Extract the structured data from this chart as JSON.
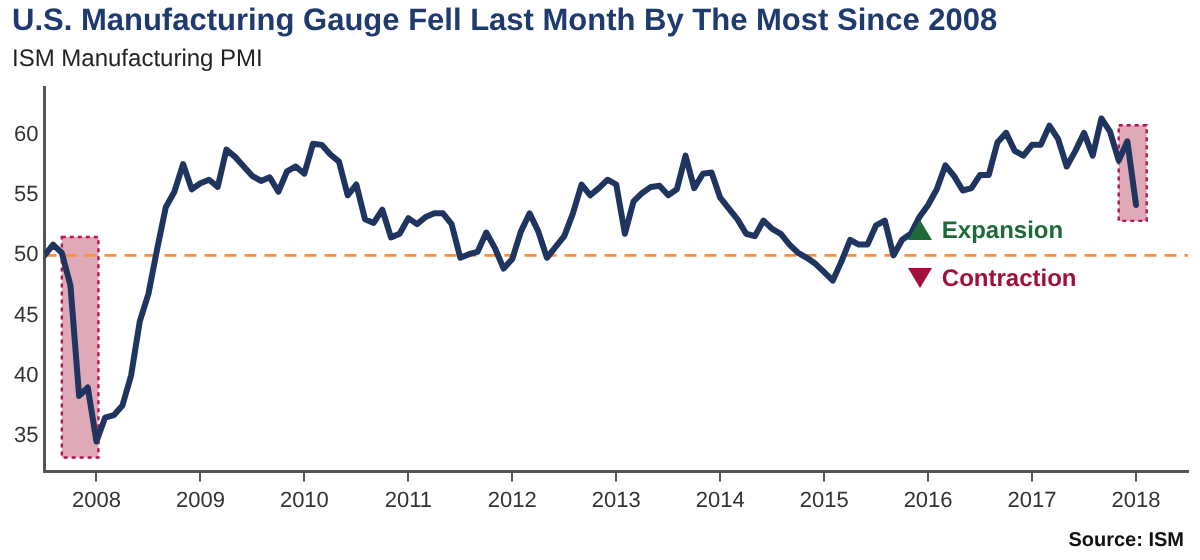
{
  "chart_data": {
    "type": "line",
    "title": "U.S. Manufacturing Gauge Fell Last Month By The Most Since 2008",
    "subtitle": "ISM Manufacturing PMI",
    "annotations": [
      "Expansion",
      "Contraction",
      "Source: ISM"
    ],
    "x": [
      "2007-07",
      "2007-08",
      "2007-09",
      "2007-10",
      "2007-11",
      "2007-12",
      "2008-01",
      "2008-02",
      "2008-03",
      "2008-04",
      "2008-05",
      "2008-06",
      "2008-07",
      "2008-08",
      "2008-09",
      "2008-10",
      "2008-11",
      "2008-12",
      "2009-01",
      "2009-02",
      "2009-03",
      "2009-04",
      "2009-05",
      "2009-06",
      "2009-07",
      "2009-08",
      "2009-09",
      "2009-10",
      "2009-11",
      "2009-12",
      "2010-01",
      "2010-02",
      "2010-03",
      "2010-04",
      "2010-05",
      "2010-06",
      "2010-07",
      "2010-08",
      "2010-09",
      "2010-10",
      "2010-11",
      "2010-12",
      "2011-01",
      "2011-02",
      "2011-03",
      "2011-04",
      "2011-05",
      "2011-06",
      "2011-07",
      "2011-08",
      "2011-09",
      "2011-10",
      "2011-11",
      "2011-12",
      "2012-01",
      "2012-02",
      "2012-03",
      "2012-04",
      "2012-05",
      "2012-06",
      "2012-07",
      "2012-08",
      "2012-09",
      "2012-10",
      "2012-11",
      "2012-12",
      "2013-01",
      "2013-02",
      "2013-03",
      "2013-04",
      "2013-05",
      "2013-06",
      "2013-07",
      "2013-08",
      "2013-09",
      "2013-10",
      "2013-11",
      "2013-12",
      "2014-01",
      "2014-02",
      "2014-03",
      "2014-04",
      "2014-05",
      "2014-06",
      "2014-07",
      "2014-08",
      "2014-09",
      "2014-10",
      "2014-11",
      "2014-12",
      "2015-01",
      "2015-02",
      "2015-03",
      "2015-04",
      "2015-05",
      "2015-06",
      "2015-07",
      "2015-08",
      "2015-09",
      "2015-10",
      "2015-11",
      "2015-12",
      "2016-01",
      "2016-02",
      "2016-03",
      "2016-04",
      "2016-05",
      "2016-06",
      "2016-07",
      "2016-08",
      "2016-09",
      "2016-10",
      "2016-11",
      "2016-12",
      "2017-01",
      "2017-02",
      "2017-03",
      "2017-04",
      "2017-05",
      "2017-06",
      "2017-07",
      "2017-08",
      "2017-09",
      "2017-10",
      "2017-11",
      "2017-12",
      "2018-01"
    ],
    "series": [
      {
        "color": "#1f3560",
        "values": [
          50.0,
          50.9,
          50.2,
          47.5,
          38.3,
          39.0,
          34.5,
          36.5,
          36.7,
          37.5,
          40.0,
          44.5,
          46.8,
          50.5,
          54.0,
          55.3,
          57.6,
          55.5,
          56.0,
          56.3,
          55.7,
          58.8,
          58.2,
          57.4,
          56.6,
          56.2,
          56.5,
          55.3,
          57.0,
          57.4,
          56.8,
          59.3,
          59.2,
          58.4,
          57.8,
          55.0,
          55.9,
          53.0,
          52.7,
          53.8,
          51.5,
          51.8,
          53.1,
          52.6,
          53.2,
          53.5,
          53.5,
          52.6,
          49.8,
          50.1,
          50.3,
          51.9,
          50.6,
          48.9,
          49.7,
          52.0,
          53.5,
          52.0,
          49.8,
          50.7,
          51.6,
          53.5,
          55.9,
          55.0,
          55.6,
          56.3,
          55.9,
          51.8,
          54.5,
          55.2,
          55.7,
          55.8,
          55.0,
          55.5,
          58.3,
          55.6,
          56.8,
          56.9,
          54.8,
          53.9,
          53.0,
          51.8,
          51.6,
          52.9,
          52.2,
          51.8,
          50.9,
          50.2,
          49.8,
          49.3,
          48.6,
          47.9,
          49.5,
          51.3,
          50.9,
          50.9,
          52.5,
          52.9,
          50.0,
          51.3,
          51.8,
          53.2,
          54.2,
          55.5,
          57.5,
          56.6,
          55.4,
          55.6,
          56.7,
          56.7,
          59.4,
          60.2,
          58.7,
          58.3,
          59.2,
          59.2,
          60.8,
          59.7,
          57.4,
          58.7,
          60.2,
          58.3,
          61.4,
          60.3,
          57.9,
          59.5,
          54.2
        ]
      }
    ],
    "xlim": [
      "2007-07",
      "2018-07"
    ],
    "xticks": [
      "2008",
      "2009",
      "2010",
      "2011",
      "2012",
      "2013",
      "2014",
      "2015",
      "2016",
      "2017",
      "2018"
    ],
    "ylim": [
      32,
      64
    ],
    "yticks": [
      35,
      40,
      45,
      50,
      55,
      60
    ],
    "ref_lines": [
      {
        "axis": "y",
        "value": 50,
        "color": "#f7913d",
        "line_style": "dashed"
      }
    ],
    "bands": [
      {
        "axis": "x",
        "from": "2007-09-01",
        "to": "2008-01-08",
        "color": "#d48ca0"
      },
      {
        "axis": "x",
        "from": "2017-11-01",
        "to": "2018-02-08",
        "color": "#d48ca0"
      }
    ],
    "grid": false,
    "legend": false,
    "marker": "none"
  }
}
